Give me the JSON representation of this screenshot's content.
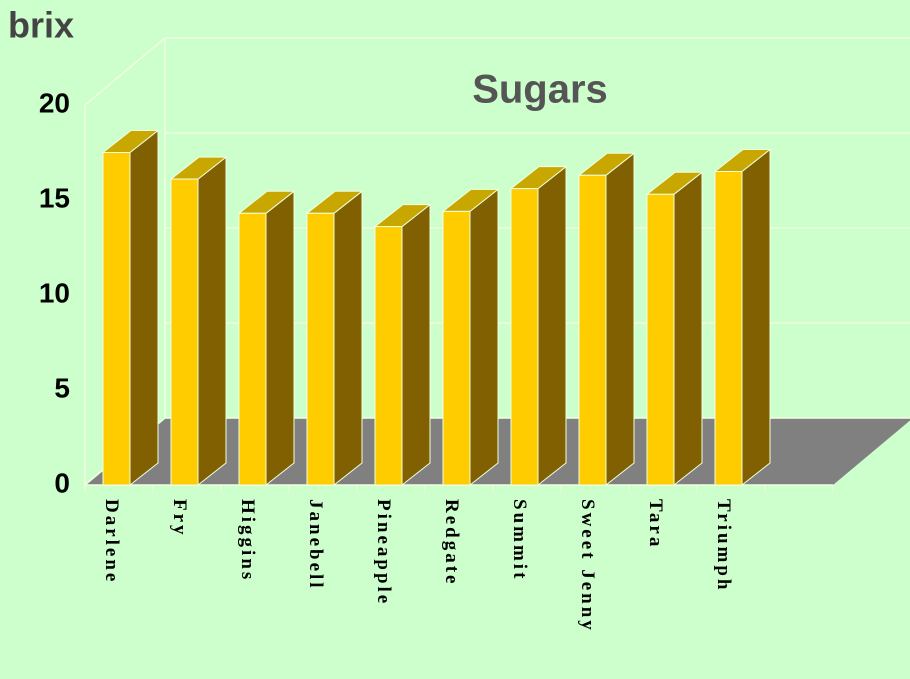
{
  "chart_data": {
    "type": "bar3d",
    "title": "Sugars",
    "y_label": "brix",
    "categories": [
      "Darlene",
      "Fry",
      "Higgins",
      "Janebell",
      "Pineapple",
      "Redgate",
      "Summit",
      "Sweet Jenny",
      "Tara",
      "Triumph"
    ],
    "values": [
      17.5,
      16.1,
      14.3,
      14.3,
      13.6,
      14.4,
      15.6,
      16.3,
      15.3,
      16.5
    ],
    "color": "#ffcc00",
    "side_color": "#806000",
    "top_color": "#c8a800",
    "ylim": [
      0,
      20
    ],
    "yticks": [
      0,
      5,
      10,
      15,
      20
    ],
    "grid": true
  }
}
